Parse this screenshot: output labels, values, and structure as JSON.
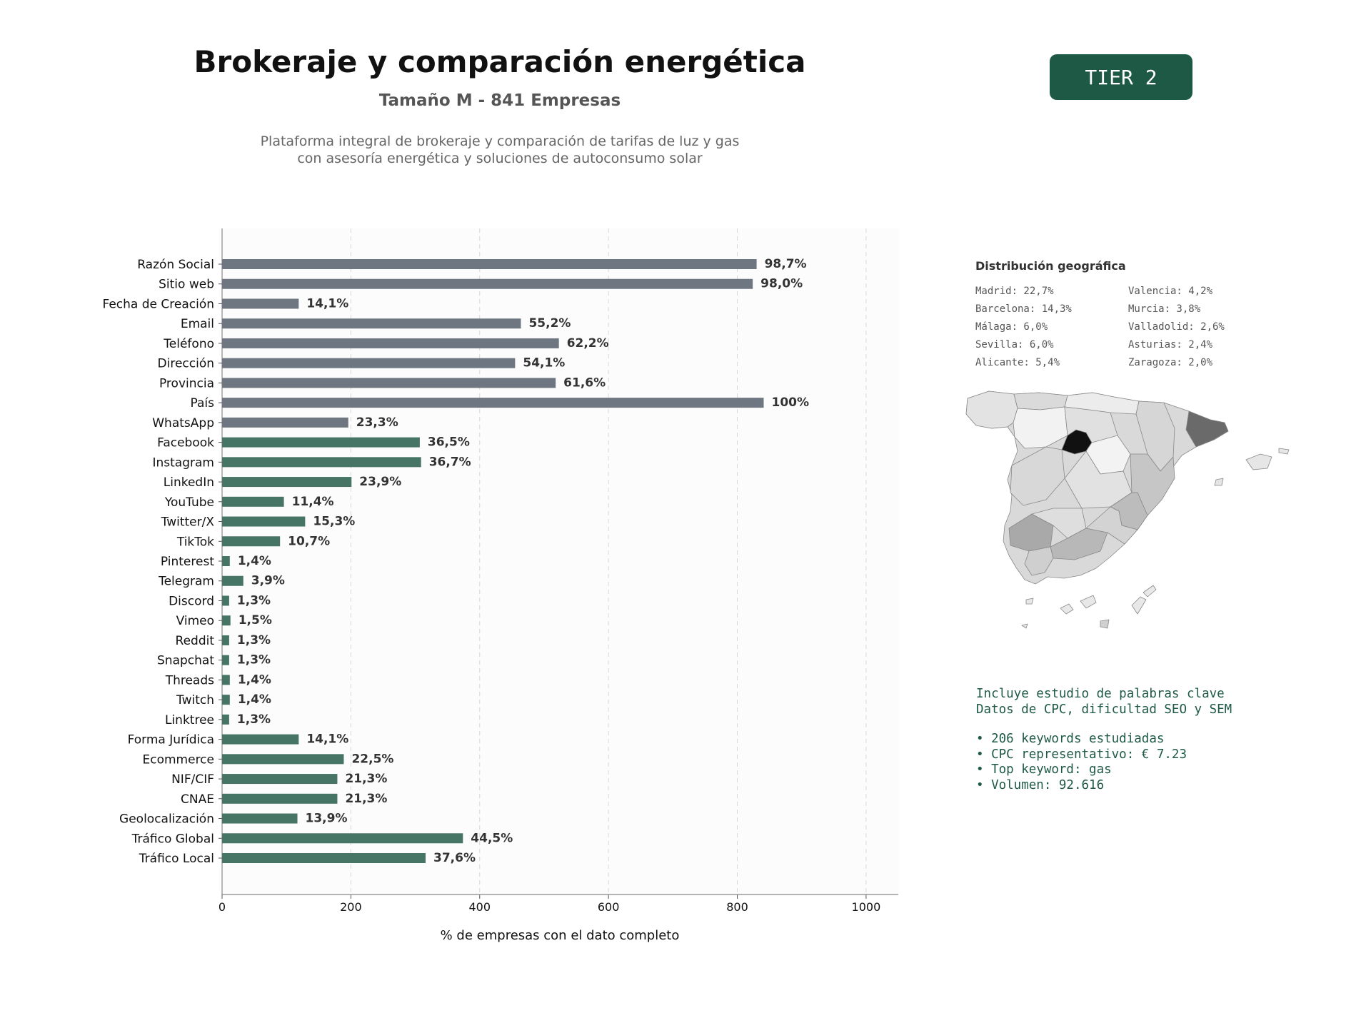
{
  "header": {
    "title": "Brokeraje y comparación energética",
    "subtitle": "Tamaño M - 841 Empresas",
    "description_line1": "Plataforma integral de brokeraje y comparación de tarifas de luz y gas",
    "description_line2": "con asesoría energética y soluciones de autoconsumo solar",
    "tier_badge": "TIER 2"
  },
  "colors": {
    "gray_bar": "#6e7781",
    "green_bar": "#467565",
    "accent": "#1e5945"
  },
  "chart_data": {
    "type": "bar",
    "orientation": "horizontal",
    "xlabel": "% de empresas con el dato completo",
    "xlim": [
      0,
      1050
    ],
    "xticks": [
      0,
      200,
      400,
      600,
      800,
      1000
    ],
    "grid": "vertical dashed",
    "categories": [
      "Razón Social",
      "Sitio web",
      "Fecha de Creación",
      "Email",
      "Teléfono",
      "Dirección",
      "Provincia",
      "País",
      "WhatsApp",
      "Facebook",
      "Instagram",
      "LinkedIn",
      "YouTube",
      "Twitter/X",
      "TikTok",
      "Pinterest",
      "Telegram",
      "Discord",
      "Vimeo",
      "Reddit",
      "Snapchat",
      "Threads",
      "Twitch",
      "Linktree",
      "Forma Jurídica",
      "Ecommerce",
      "NIF/CIF",
      "CNAE",
      "Geolocalización",
      "Tráfico Global",
      "Tráfico Local"
    ],
    "values": [
      830,
      824,
      119,
      464,
      523,
      455,
      518,
      841,
      196,
      307,
      309,
      201,
      96,
      129,
      90,
      12,
      33,
      11,
      13,
      11,
      11,
      12,
      12,
      11,
      119,
      189,
      179,
      179,
      117,
      374,
      316
    ],
    "labels": [
      "98,7%",
      "98,0%",
      "14,1%",
      "55,2%",
      "62,2%",
      "54,1%",
      "61,6%",
      "100%",
      "23,3%",
      "36,5%",
      "36,7%",
      "23,9%",
      "11,4%",
      "15,3%",
      "10,7%",
      "1,4%",
      "3,9%",
      "1,3%",
      "1,5%",
      "1,3%",
      "1,3%",
      "1,4%",
      "1,4%",
      "1,3%",
      "14,1%",
      "22,5%",
      "21,3%",
      "21,3%",
      "13,9%",
      "44,5%",
      "37,6%"
    ],
    "groups": [
      "gray",
      "gray",
      "gray",
      "gray",
      "gray",
      "gray",
      "gray",
      "gray",
      "gray",
      "green",
      "green",
      "green",
      "green",
      "green",
      "green",
      "green",
      "green",
      "green",
      "green",
      "green",
      "green",
      "green",
      "green",
      "green",
      "green",
      "green",
      "green",
      "green",
      "green",
      "green",
      "green"
    ]
  },
  "geo": {
    "title": "Distribución geográfica",
    "items": [
      "Madrid: 22,7%",
      "Valencia: 4,2%",
      "Barcelona: 14,3%",
      "Murcia: 3,8%",
      "Málaga: 6,0%",
      "Valladolid: 2,6%",
      "Sevilla: 6,0%",
      "Asturias: 2,4%",
      "Alicante: 5,4%",
      "Zaragoza: 2,0%"
    ]
  },
  "keywords": {
    "line1": "Incluye estudio de palabras clave",
    "line2": "Datos de CPC, dificultad SEO y SEM",
    "bullets": [
      "• 206 keywords estudiadas",
      "• CPC representativo: € 7.23",
      "• Top keyword: gas",
      "• Volumen: 92.616"
    ]
  }
}
